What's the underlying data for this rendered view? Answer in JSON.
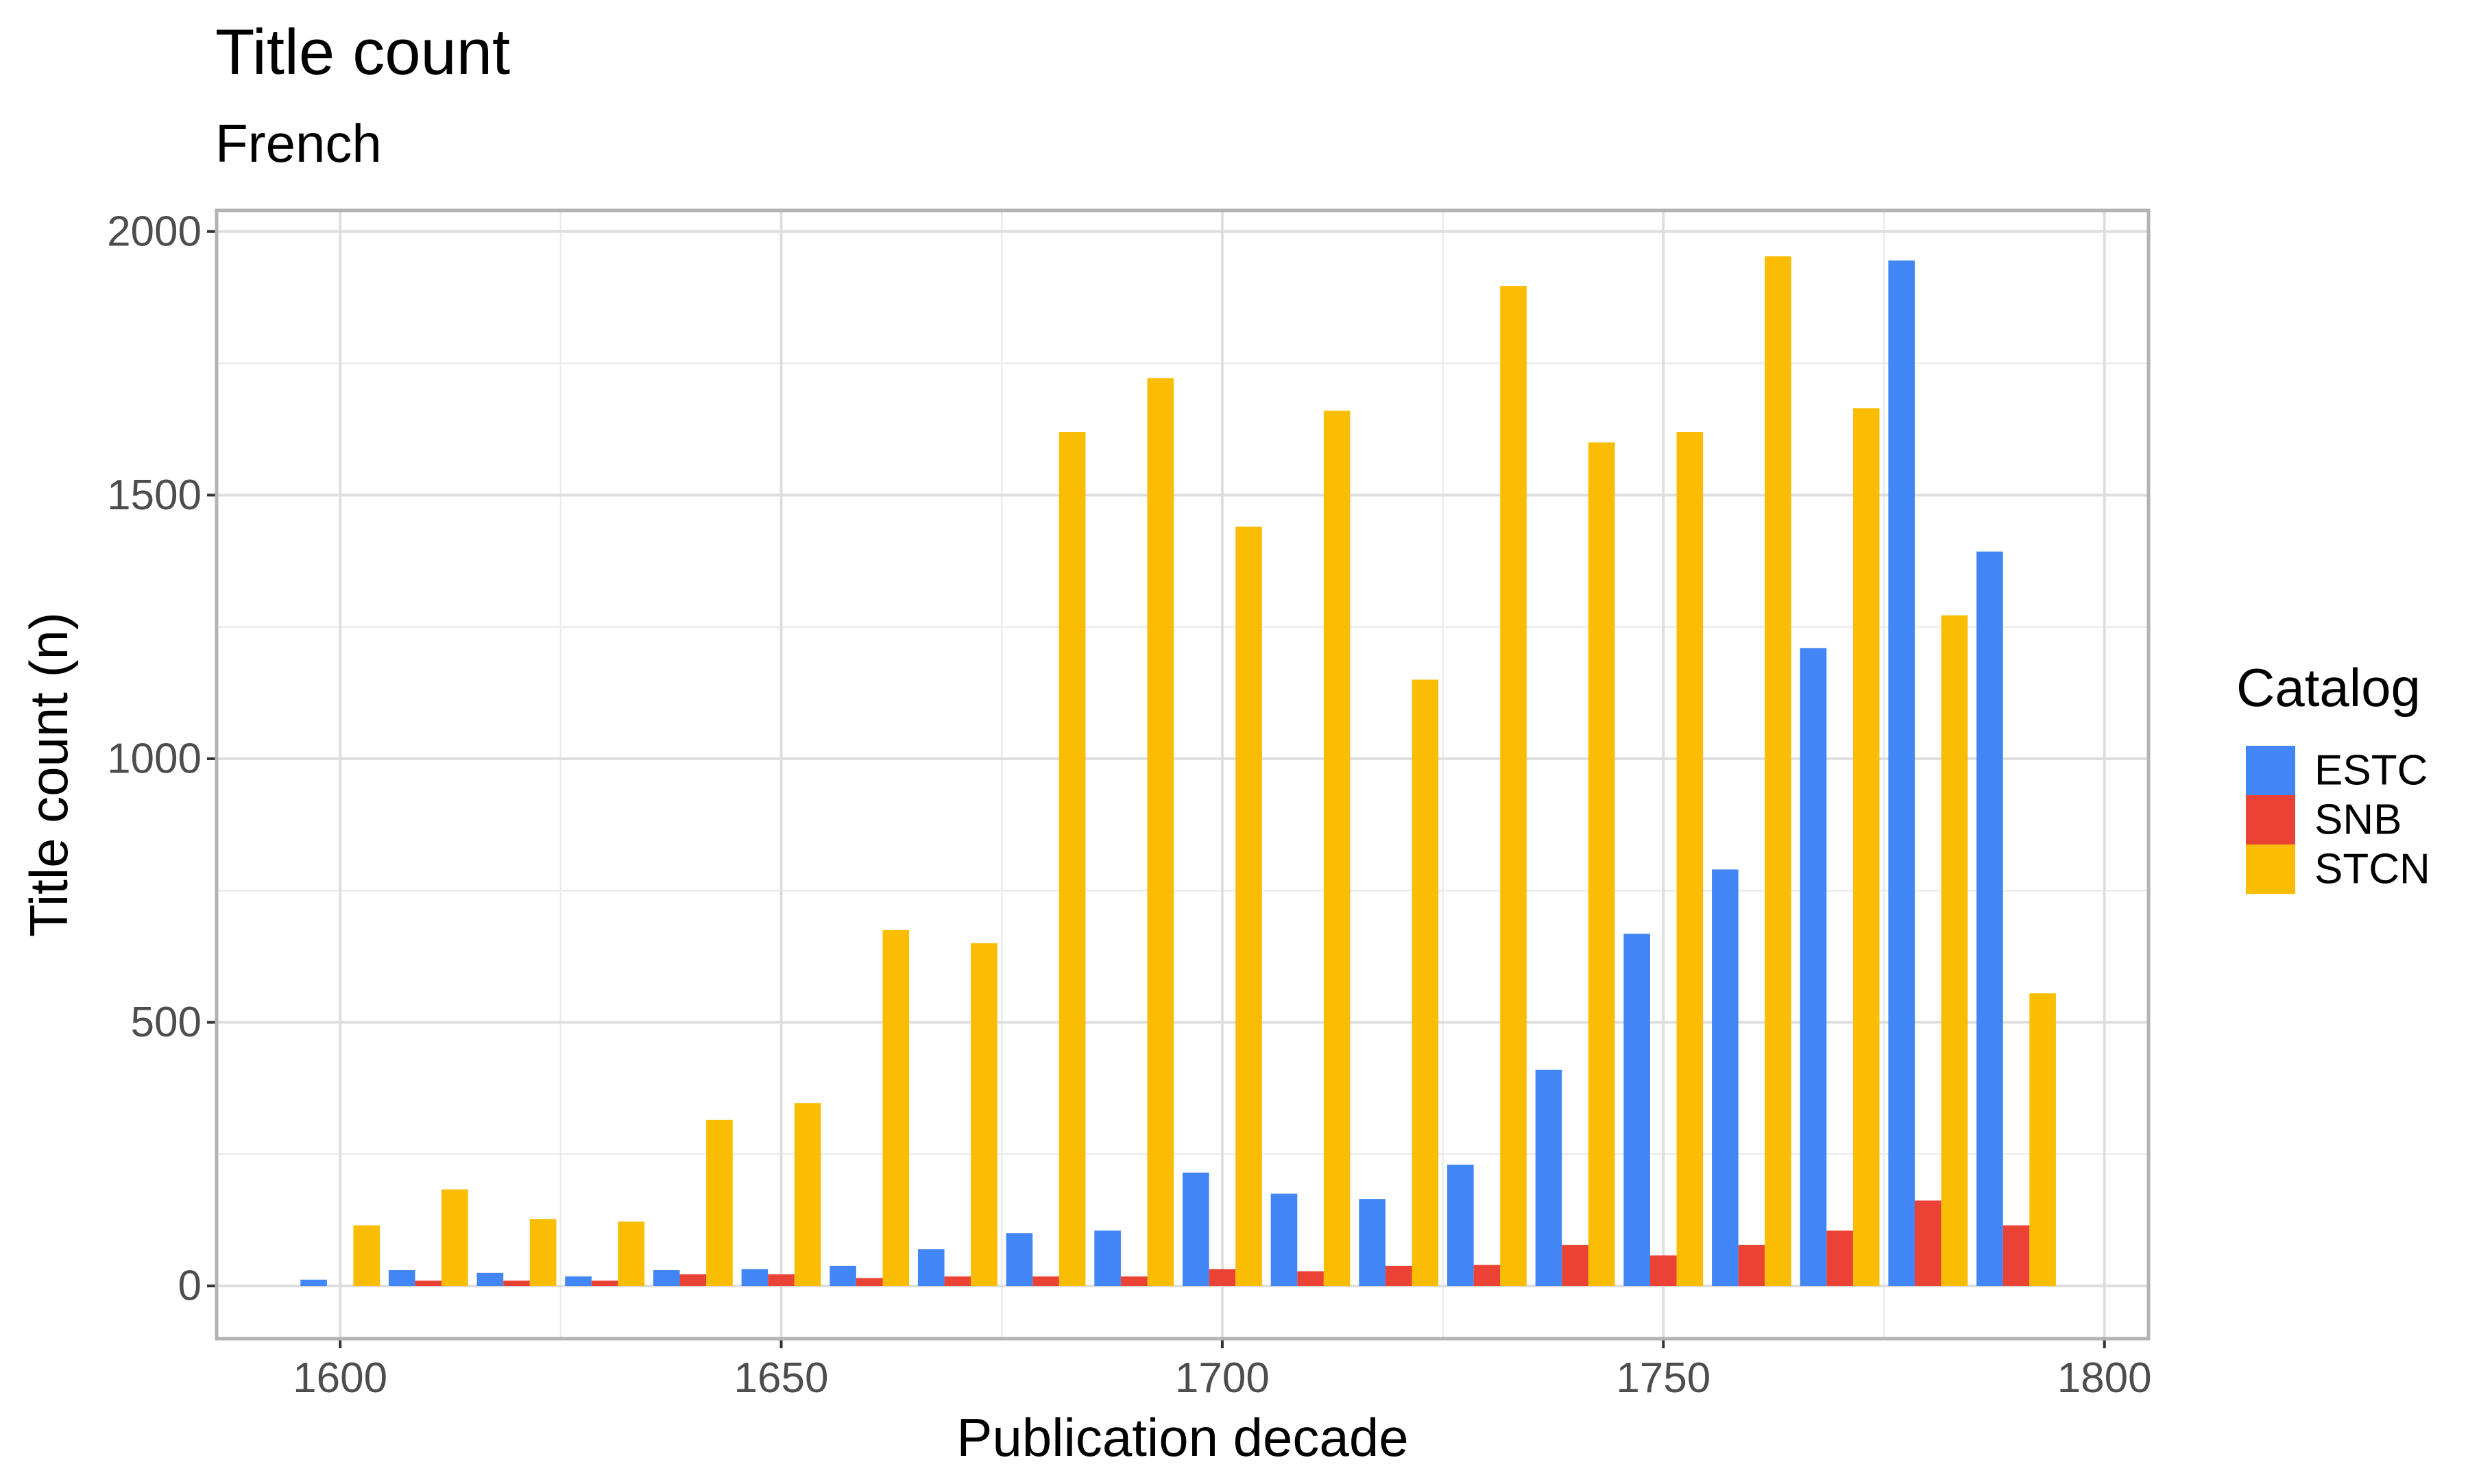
{
  "chart_data": {
    "type": "bar",
    "title": "Title count",
    "subtitle": "French",
    "xlabel": "Publication decade",
    "ylabel": "Title count (n)",
    "xlim": [
      1586,
      1805
    ],
    "ylim": [
      -100,
      2040
    ],
    "x_ticks": [
      1600,
      1650,
      1700,
      1750,
      1800
    ],
    "y_ticks": [
      0,
      500,
      1000,
      1500,
      2000
    ],
    "grid": true,
    "bar_width_years": 3.0,
    "x": [
      1600,
      1610,
      1620,
      1630,
      1640,
      1650,
      1660,
      1670,
      1680,
      1690,
      1700,
      1710,
      1720,
      1730,
      1740,
      1750,
      1760,
      1770,
      1780,
      1790
    ],
    "legend": {
      "title": "Catalog",
      "position": "right"
    },
    "series": [
      {
        "name": "ESTC",
        "color": "#4285F4",
        "values": [
          12,
          30,
          25,
          18,
          30,
          32,
          38,
          70,
          100,
          105,
          215,
          175,
          165,
          230,
          410,
          668,
          790,
          1210,
          1945,
          1393
        ]
      },
      {
        "name": "SNB",
        "color": "#EA4335",
        "values": [
          0,
          10,
          10,
          10,
          22,
          22,
          15,
          18,
          18,
          18,
          32,
          28,
          38,
          40,
          78,
          58,
          78,
          105,
          162,
          115
        ]
      },
      {
        "name": "STCN",
        "color": "#FBBC04",
        "values": [
          115,
          183,
          127,
          122,
          315,
          347,
          675,
          650,
          1620,
          1722,
          1440,
          1660,
          1150,
          1897,
          1600,
          1620,
          1953,
          1665,
          1272,
          555
        ]
      }
    ]
  }
}
